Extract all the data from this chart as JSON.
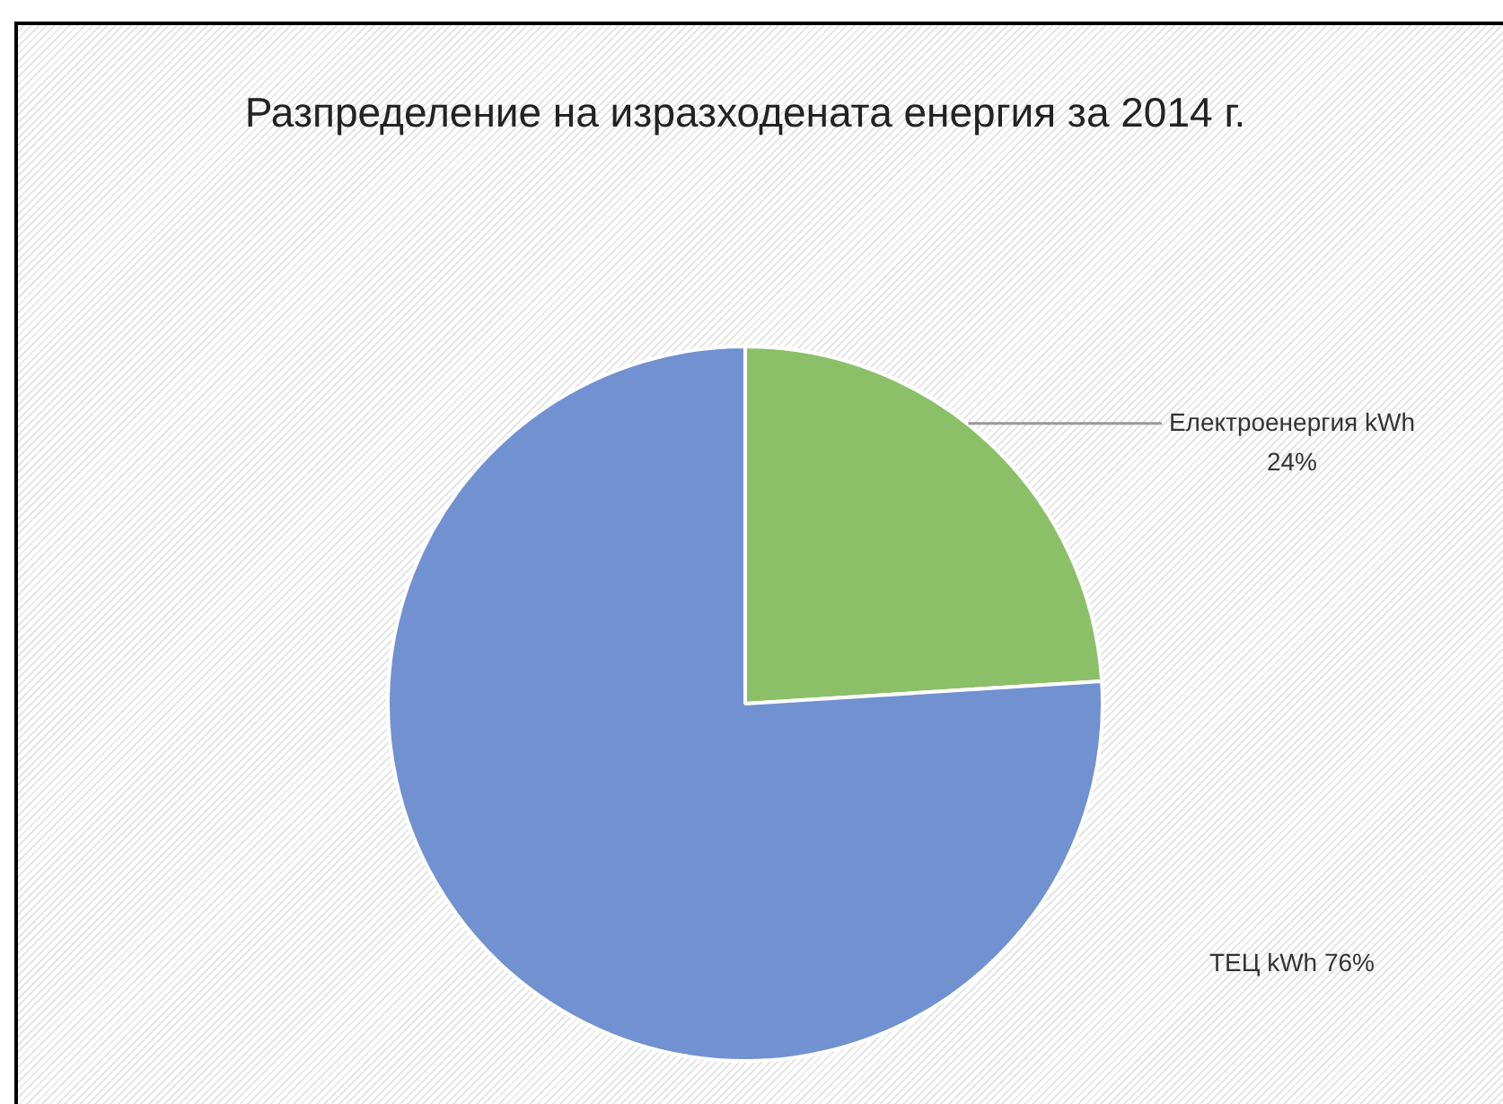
{
  "chart_data": {
    "type": "pie",
    "title": "Разпределение на изразходената енергия за 2014 г.",
    "categories": [
      "Електроенергия kWh",
      "ТЕЦ kWh"
    ],
    "values": [
      24,
      76
    ],
    "colors": [
      "#8cc068",
      "#7191d1"
    ],
    "value_labels": [
      "24%",
      "76%"
    ],
    "legend": false
  }
}
